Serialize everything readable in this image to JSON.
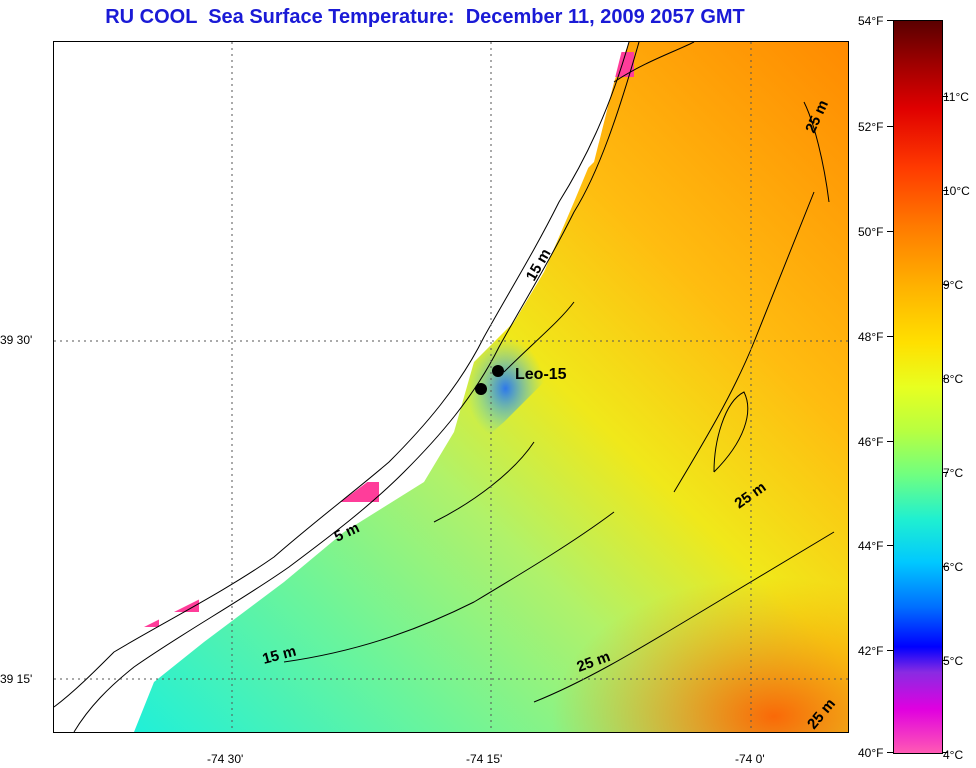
{
  "title": "RU COOL  Sea Surface Temperature:  December 11, 2009 2057 GMT",
  "axes": {
    "lat_labels": [
      {
        "text": "39 30'",
        "value": 39.5
      },
      {
        "text": "39 15'",
        "value": 39.25
      }
    ],
    "lon_labels": [
      {
        "text": "-74 30'",
        "value": -74.5
      },
      {
        "text": "-74 15'",
        "value": -74.25
      },
      {
        "text": "-74 0'",
        "value": -74.0
      }
    ]
  },
  "contour_labels": [
    "15 m",
    "5 m",
    "15 m",
    "25 m",
    "25 m",
    "25 m",
    "25 m"
  ],
  "stations": {
    "label": "Leo-15"
  },
  "colorbar": {
    "fahrenheit": [
      "54°F",
      "52°F",
      "50°F",
      "48°F",
      "46°F",
      "44°F",
      "42°F",
      "40°F"
    ],
    "celsius": [
      "11°C",
      "10°C",
      "9°C",
      "8°C",
      "7°C",
      "6°C",
      "5°C",
      "4°C"
    ]
  },
  "colors": {
    "title": "#1a1ad6",
    "land": "#ffffff",
    "cloud_mask": "#ff3d9a",
    "border": "#000000"
  }
}
